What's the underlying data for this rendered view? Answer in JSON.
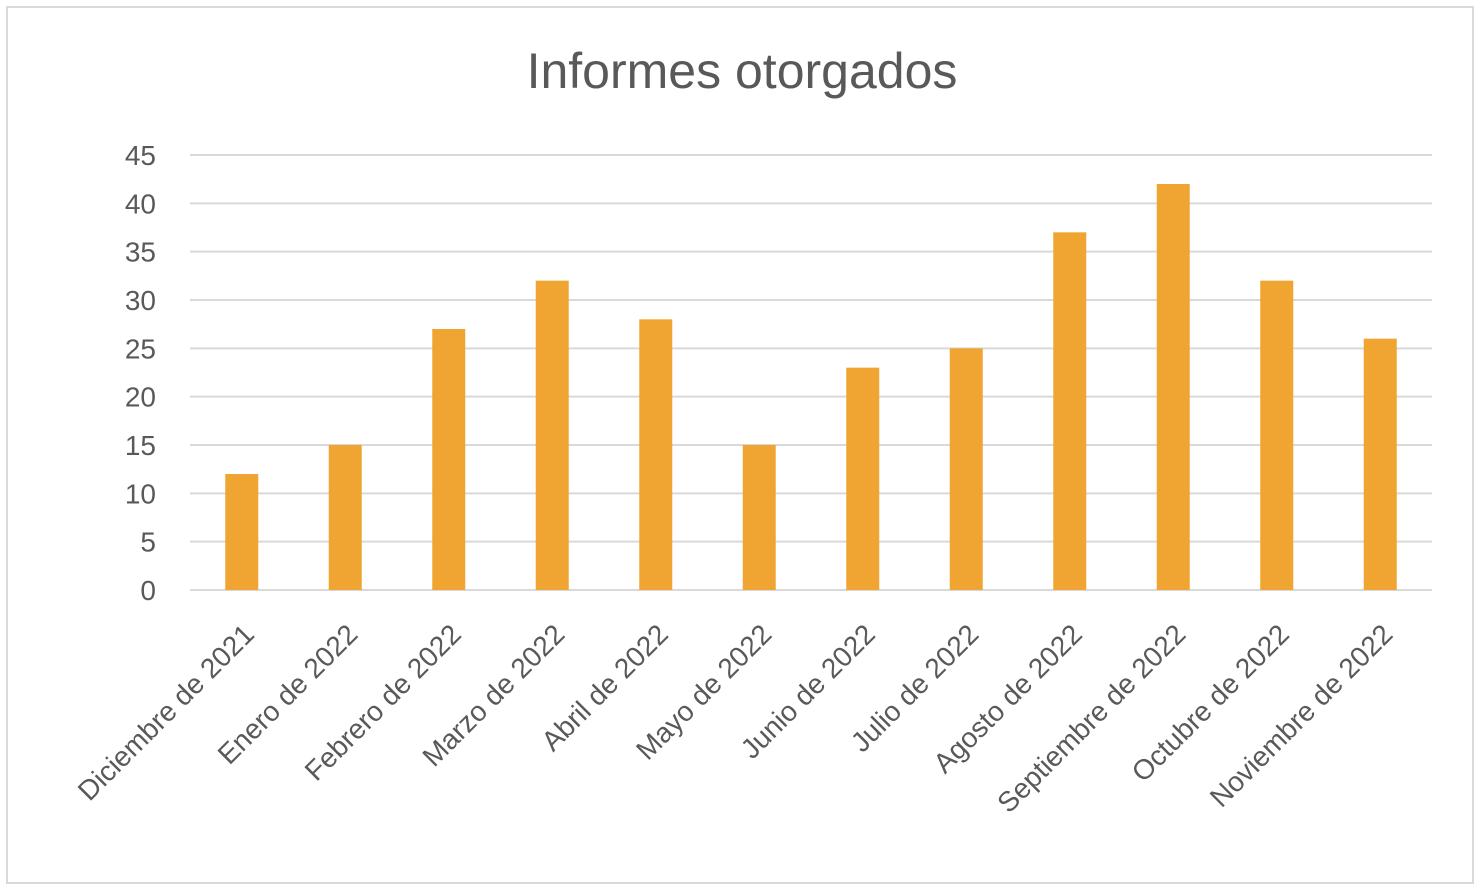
{
  "chart_data": {
    "type": "bar",
    "title": "Informes otorgados",
    "xlabel": "",
    "ylabel": "",
    "ylim": [
      0,
      45
    ],
    "yticks": [
      0,
      5,
      10,
      15,
      20,
      25,
      30,
      35,
      40,
      45
    ],
    "grid": true,
    "legend": "none",
    "bar_color": "#F0A532",
    "grid_color": "#d9d9d9",
    "categories": [
      "Diciembre de 2021",
      "Enero de 2022",
      "Febrero de 2022",
      "Marzo de 2022",
      "Abril de 2022",
      "Mayo de 2022",
      "Junio de 2022",
      "Julio de 2022",
      "Agosto de 2022",
      "Septiembre de 2022",
      "Octubre de 2022",
      "Noviembre de 2022"
    ],
    "values": [
      12,
      15,
      27,
      32,
      28,
      15,
      23,
      25,
      37,
      42,
      32,
      26
    ]
  }
}
